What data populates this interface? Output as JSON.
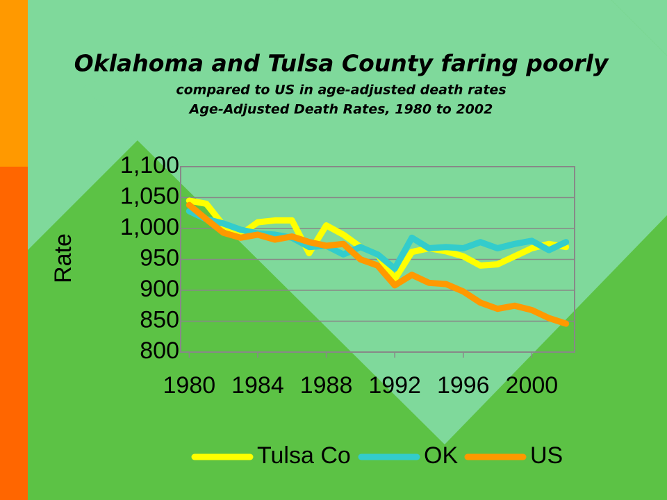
{
  "chart_data": {
    "type": "line",
    "title": "Oklahoma and Tulsa County faring poorly",
    "subtitle": "compared to US in age-adjusted death rates",
    "chart_title": "Age-Adjusted Death Rates, 1980 to 2002",
    "y_label": "Rate",
    "x": [
      1980,
      1981,
      1982,
      1983,
      1984,
      1985,
      1986,
      1987,
      1988,
      1989,
      1990,
      1991,
      1992,
      1993,
      1994,
      1995,
      1996,
      1997,
      1998,
      1999,
      2000,
      2001,
      2002
    ],
    "xlim": [
      1979.5,
      2002.5
    ],
    "xticks": [
      1980,
      1984,
      1988,
      1992,
      1996,
      2000
    ],
    "ylim": [
      800,
      1100
    ],
    "yticks": [
      800,
      850,
      900,
      950,
      {
        "value": 1000,
        "label": "1,000"
      },
      {
        "value": 1050,
        "label": "1,050"
      },
      {
        "value": 1100,
        "label": "1,100"
      }
    ],
    "grid": true,
    "legend": "bottom",
    "series": [
      {
        "name": "Tulsa Co",
        "color": "#ffff00",
        "values": [
          1045,
          1040,
          1005,
          990,
          1010,
          1013,
          1013,
          960,
          1005,
          990,
          970,
          958,
          918,
          962,
          968,
          963,
          955,
          940,
          942,
          955,
          968,
          975,
          970
        ]
      },
      {
        "name": "OK",
        "color": "#33cccc",
        "values": [
          1028,
          1015,
          1008,
          998,
          992,
          990,
          985,
          970,
          972,
          958,
          970,
          958,
          935,
          985,
          968,
          970,
          968,
          978,
          968,
          975,
          980,
          965,
          978
        ]
      },
      {
        "name": "US",
        "color": "#ff9900",
        "values": [
          1038,
          1015,
          993,
          985,
          990,
          982,
          987,
          978,
          972,
          975,
          950,
          940,
          908,
          925,
          912,
          910,
          898,
          880,
          870,
          875,
          868,
          855,
          846
        ]
      }
    ]
  }
}
